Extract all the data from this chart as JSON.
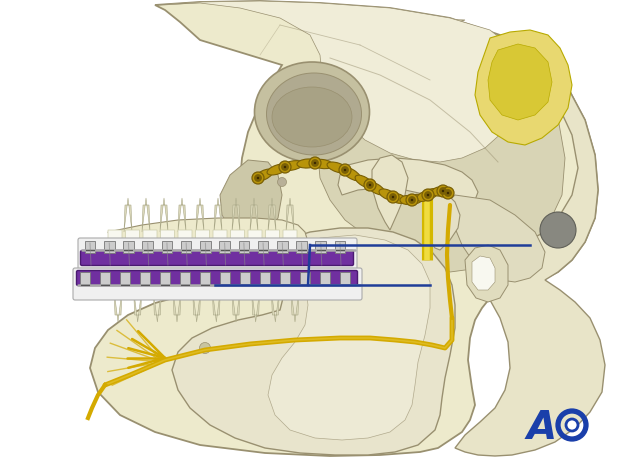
{
  "background_color": "#ffffff",
  "ao_logo_color": "#1a3faa",
  "skull_fill": "#edeacc",
  "skull_outline": "#999070",
  "skull_inner": "#d8d4b5",
  "eye_socket_fill": "#c5c0a0",
  "eye_socket_inner": "#b0aa90",
  "bone_plate_color": "#b8940a",
  "bone_plate_outline": "#7a6005",
  "nerve_yellow": "#d4aa00",
  "nerve_yellow2": "#e8cc44",
  "purple_arch": "#7030a0",
  "purple_arch_dark": "#4a1a70",
  "blue_line": "#1f3d99",
  "yellow_struct": "#e8d84a",
  "yellow_struct_outline": "#b8aa00",
  "gray_disk": "#888880",
  "cartilage_yellow": "#e8d870",
  "fig_width": 6.2,
  "fig_height": 4.59,
  "dpi": 100
}
